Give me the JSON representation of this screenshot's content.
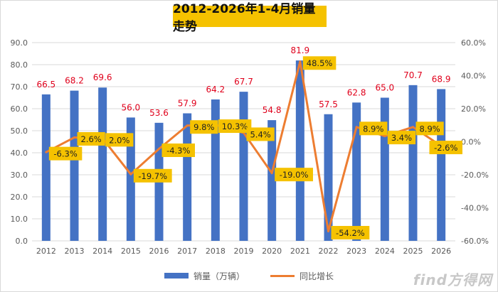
{
  "title": "2012-2026年1-4月销量走势",
  "chart_data": {
    "type": "bar",
    "categories": [
      "2012",
      "2013",
      "2014",
      "2015",
      "2016",
      "2017",
      "2018",
      "2019",
      "2020",
      "2021",
      "2022",
      "2023",
      "2024",
      "2025",
      "2026"
    ],
    "series": [
      {
        "name": "销量（万辆）",
        "type": "bar",
        "axis": "left",
        "values": [
          66.5,
          68.2,
          69.6,
          56.0,
          53.6,
          57.9,
          64.2,
          67.7,
          54.8,
          81.9,
          57.5,
          62.8,
          65.0,
          70.7,
          68.9
        ],
        "labels": [
          "66.5",
          "68.2",
          "69.6",
          "56.0",
          "53.6",
          "57.9",
          "64.2",
          "67.7",
          "54.8",
          "81.9",
          "57.5",
          "62.8",
          "65.0",
          "70.7",
          "68.9"
        ]
      },
      {
        "name": "同比增长",
        "type": "line",
        "axis": "right",
        "values": [
          -6.3,
          2.6,
          2.0,
          -19.7,
          -4.3,
          9.8,
          10.3,
          5.4,
          -19.0,
          48.5,
          -54.2,
          8.9,
          3.4,
          8.9,
          -2.6
        ],
        "labels": [
          "-6.3%",
          "2.6%",
          "2.0%",
          "-19.7%",
          "-4.3%",
          "9.8%",
          "10.3%",
          "5.4%",
          "-19.0%",
          "48.5%",
          "-54.2%",
          "8.9%",
          "3.4%",
          "8.9%",
          "-2.6%"
        ]
      }
    ],
    "left_axis": {
      "ylim": [
        0,
        90
      ],
      "ticks": [
        "0.0",
        "10.0",
        "20.0",
        "30.0",
        "40.0",
        "50.0",
        "60.0",
        "70.0",
        "80.0",
        "90.0"
      ]
    },
    "right_axis": {
      "ylim": [
        -60,
        60
      ],
      "ticks": [
        "-60.0%",
        "-40.0%",
        "-20.0%",
        "0.0%",
        "20.0%",
        "40.0%",
        "60.0%"
      ]
    },
    "grid": true,
    "legend_position": "bottom"
  },
  "colors": {
    "bar": "#4472c4",
    "line": "#ed7d31",
    "label_box": "#f5c200",
    "value_label": "#e0001b",
    "grid": "#d9d9d9"
  },
  "watermark": "find方得网"
}
